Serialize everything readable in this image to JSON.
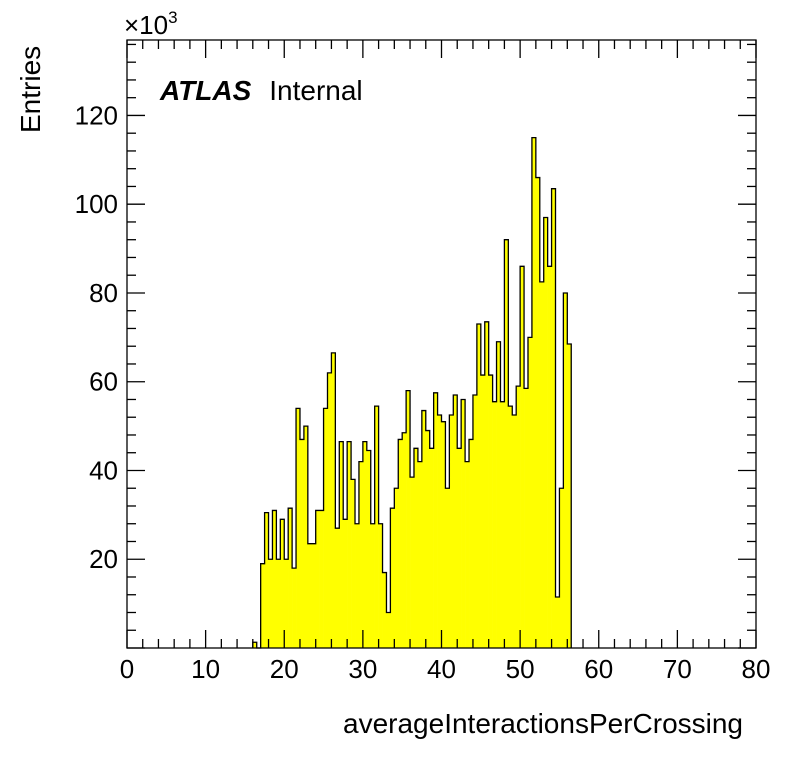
{
  "chart_data": {
    "type": "bar",
    "histogram_style": "step-filled",
    "fill_color": "#ffff00",
    "line_color": "#000000",
    "xlabel": "averageInteractionsPerCrossing",
    "ylabel": "Entries",
    "y_multiplier_base": "×10",
    "y_multiplier_exponent": "3",
    "label_bold": "ATLAS",
    "label_text": "Internal",
    "xlim": [
      0,
      80
    ],
    "ylim": [
      0,
      137
    ],
    "x_ticks": [
      "0",
      "10",
      "20",
      "30",
      "40",
      "50",
      "60",
      "70",
      "80"
    ],
    "y_ticks": [
      "20",
      "40",
      "60",
      "80",
      "100",
      "120"
    ],
    "grid": false,
    "bin_width": 0.5,
    "bin_start": 16.0,
    "values": [
      1.3,
      0,
      19,
      30.5,
      20,
      31,
      20,
      29,
      20,
      31.5,
      18,
      54,
      47,
      50,
      23.5,
      23.5,
      31,
      31,
      54,
      62,
      66.5,
      27,
      46.5,
      29,
      46.5,
      38,
      28,
      42,
      46.5,
      44.5,
      28,
      54.5,
      28,
      17,
      8,
      31.5,
      36,
      47,
      48.5,
      58,
      38.5,
      45,
      42,
      53.5,
      49,
      45,
      57.5,
      52.5,
      51,
      36,
      52.5,
      57,
      45,
      56,
      42,
      47,
      57,
      73,
      61.5,
      73.5,
      61.5,
      55.5,
      69,
      55.5,
      92,
      54.5,
      52.5,
      59,
      86,
      58.5,
      70,
      115,
      106,
      82.5,
      97,
      86,
      103.5,
      11.5,
      36,
      80,
      68.5
    ]
  }
}
